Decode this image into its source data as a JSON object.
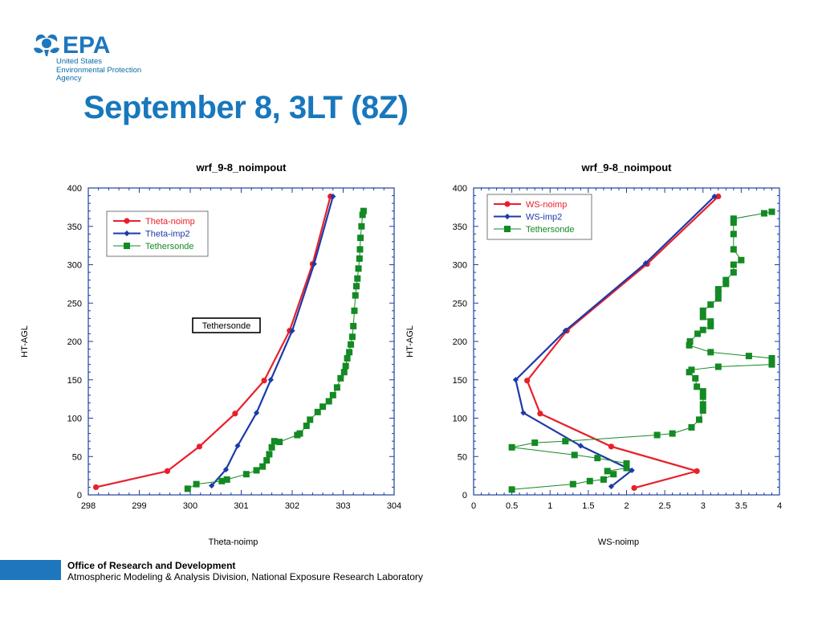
{
  "logo": {
    "wordmark": "EPA",
    "name_line1": "United States",
    "name_line2": "Environmental Protection",
    "name_line3": "Agency"
  },
  "slide": {
    "title": "September 8, 3LT (8Z)"
  },
  "footer": {
    "org": "Office of Research and Development",
    "division": "Atmospheric Modeling & Analysis Division, National Exposure Research Laboratory"
  },
  "colors": {
    "noimp": "#e8202a",
    "imp2": "#1d3aa8",
    "tether": "#138a23",
    "axis": "#1f3fa0",
    "title": "#1877bd"
  },
  "chart_data": [
    {
      "type": "line",
      "title": "wrf_9-8_noimpout",
      "xlabel": "Theta-noimp",
      "ylabel": "HT-AGL",
      "xlim": [
        298,
        304
      ],
      "ylim": [
        0,
        400
      ],
      "xticks": [
        "298",
        "299",
        "300",
        "301",
        "302",
        "303",
        "304"
      ],
      "yticks": [
        "0",
        "50",
        "100",
        "150",
        "200",
        "250",
        "300",
        "350",
        "400"
      ],
      "legend_position": "top-left",
      "annotation": "Tethersonde",
      "series": [
        {
          "name": "Theta-noimp",
          "color": "#e8202a",
          "marker": "circle",
          "points": [
            [
              298.15,
              10
            ],
            [
              299.55,
              31
            ],
            [
              300.18,
              63
            ],
            [
              300.88,
              106
            ],
            [
              301.45,
              149
            ],
            [
              301.95,
              214
            ],
            [
              302.4,
              301
            ],
            [
              302.75,
              389
            ]
          ]
        },
        {
          "name": "Theta-imp2",
          "color": "#1d3aa8",
          "marker": "diamond",
          "points": [
            [
              300.42,
              12
            ],
            [
              300.7,
              33
            ],
            [
              300.93,
              64
            ],
            [
              301.3,
              107
            ],
            [
              301.58,
              150
            ],
            [
              302.0,
              214
            ],
            [
              302.43,
              301
            ],
            [
              302.8,
              389
            ]
          ]
        },
        {
          "name": "Tethersonde",
          "color": "#138a23",
          "marker": "square",
          "points": [
            [
              299.95,
              8
            ],
            [
              300.12,
              14
            ],
            [
              300.62,
              18
            ],
            [
              300.72,
              20
            ],
            [
              301.1,
              27
            ],
            [
              301.3,
              32
            ],
            [
              301.42,
              37
            ],
            [
              301.5,
              45
            ],
            [
              301.55,
              53
            ],
            [
              301.6,
              62
            ],
            [
              301.65,
              70
            ],
            [
              301.75,
              69
            ],
            [
              302.1,
              78
            ],
            [
              302.15,
              80
            ],
            [
              302.28,
              90
            ],
            [
              302.35,
              98
            ],
            [
              302.5,
              108
            ],
            [
              302.6,
              115
            ],
            [
              302.72,
              122
            ],
            [
              302.8,
              130
            ],
            [
              302.88,
              140
            ],
            [
              302.95,
              152
            ],
            [
              303.02,
              160
            ],
            [
              303.05,
              168
            ],
            [
              303.08,
              178
            ],
            [
              303.12,
              186
            ],
            [
              303.15,
              196
            ],
            [
              303.18,
              206
            ],
            [
              303.2,
              220
            ],
            [
              303.22,
              240
            ],
            [
              303.24,
              260
            ],
            [
              303.26,
              272
            ],
            [
              303.28,
              282
            ],
            [
              303.3,
              295
            ],
            [
              303.32,
              308
            ],
            [
              303.33,
              320
            ],
            [
              303.34,
              335
            ],
            [
              303.36,
              350
            ],
            [
              303.38,
              365
            ],
            [
              303.4,
              370
            ]
          ]
        }
      ]
    },
    {
      "type": "line",
      "title": "wrf_9-8_noimpout",
      "xlabel": "WS-noimp",
      "ylabel": "HT-AGL",
      "xlim": [
        0,
        4
      ],
      "ylim": [
        0,
        400
      ],
      "xticks": [
        "0",
        "0.5",
        "1",
        "1.5",
        "2",
        "2.5",
        "3",
        "3.5",
        "4"
      ],
      "yticks": [
        "0",
        "50",
        "100",
        "150",
        "200",
        "250",
        "300",
        "350",
        "400"
      ],
      "legend_position": "top-left",
      "series": [
        {
          "name": "WS-noimp",
          "color": "#e8202a",
          "marker": "circle",
          "points": [
            [
              2.1,
              9
            ],
            [
              2.92,
              31
            ],
            [
              1.8,
              63
            ],
            [
              0.87,
              106
            ],
            [
              0.7,
              149
            ],
            [
              1.22,
              214
            ],
            [
              2.27,
              301
            ],
            [
              3.2,
              389
            ]
          ]
        },
        {
          "name": "WS-imp2",
          "color": "#1d3aa8",
          "marker": "diamond",
          "points": [
            [
              1.8,
              11
            ],
            [
              2.07,
              32
            ],
            [
              1.4,
              64
            ],
            [
              0.65,
              107
            ],
            [
              0.55,
              150
            ],
            [
              1.2,
              214
            ],
            [
              2.25,
              302
            ],
            [
              3.15,
              389
            ]
          ]
        },
        {
          "name": "Tethersonde",
          "color": "#138a23",
          "marker": "square",
          "points": [
            [
              0.5,
              7
            ],
            [
              1.3,
              14
            ],
            [
              1.52,
              18
            ],
            [
              1.7,
              20
            ],
            [
              1.83,
              27
            ],
            [
              1.75,
              31
            ],
            [
              2.0,
              35
            ],
            [
              2.0,
              41
            ],
            [
              1.62,
              48
            ],
            [
              1.32,
              52
            ],
            [
              0.5,
              62
            ],
            [
              0.8,
              68
            ],
            [
              1.2,
              70
            ],
            [
              2.4,
              78
            ],
            [
              2.6,
              80
            ],
            [
              2.85,
              88
            ],
            [
              2.95,
              98
            ],
            [
              3.0,
              110
            ],
            [
              3.0,
              118
            ],
            [
              3.0,
              128
            ],
            [
              3.0,
              135
            ],
            [
              2.92,
              141
            ],
            [
              2.9,
              152
            ],
            [
              2.82,
              160
            ],
            [
              2.85,
              163
            ],
            [
              3.2,
              167
            ],
            [
              3.9,
              170
            ],
            [
              3.9,
              178
            ],
            [
              3.6,
              181
            ],
            [
              3.1,
              186
            ],
            [
              2.82,
              195
            ],
            [
              2.83,
              200
            ],
            [
              2.93,
              210
            ],
            [
              3.0,
              215
            ],
            [
              3.1,
              220
            ],
            [
              3.1,
              226
            ],
            [
              3.0,
              232
            ],
            [
              3.0,
              240
            ],
            [
              3.1,
              248
            ],
            [
              3.2,
              256
            ],
            [
              3.2,
              263
            ],
            [
              3.2,
              268
            ],
            [
              3.3,
              275
            ],
            [
              3.3,
              280
            ],
            [
              3.4,
              290
            ],
            [
              3.4,
              300
            ],
            [
              3.5,
              306
            ],
            [
              3.4,
              320
            ],
            [
              3.4,
              340
            ],
            [
              3.4,
              355
            ],
            [
              3.4,
              360
            ],
            [
              3.8,
              367
            ],
            [
              3.9,
              369
            ]
          ]
        }
      ]
    }
  ]
}
